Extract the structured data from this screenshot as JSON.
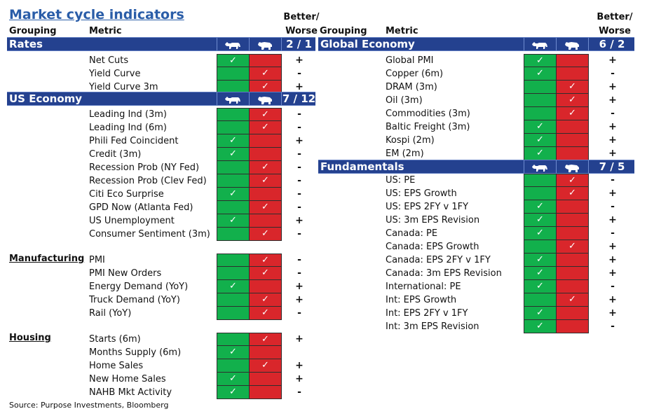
{
  "title": "Market cycle indicators",
  "columns": {
    "grouping": "Grouping",
    "metric": "Metric",
    "better_line1": "Better/",
    "better_line2": "Worse"
  },
  "source": "Source: Purpose Investments, Bloomberg",
  "colors": {
    "header_bg": "#24418f",
    "bull": "#12b04c",
    "bear": "#d9262b",
    "title": "#2a5da8"
  },
  "icons": {
    "bull": "bull-icon",
    "bear": "bear-icon",
    "check": "check-icon"
  },
  "left_sections": [
    {
      "name": "Rates",
      "score": "2 / 1",
      "group_label": "",
      "rows": [
        {
          "metric": "Net Cuts",
          "signal": "bull",
          "sign": "+"
        },
        {
          "metric": "Yield Curve",
          "signal": "bear",
          "sign": "-"
        },
        {
          "metric": "Yield Curve 3m",
          "signal": "bear",
          "sign": "+"
        }
      ]
    },
    {
      "name": "US Economy",
      "score": "7 / 12",
      "group_label": "",
      "rows": [
        {
          "metric": "Leading Ind (3m)",
          "signal": "bear",
          "sign": "-"
        },
        {
          "metric": "Leading Ind (6m)",
          "signal": "bear",
          "sign": "-"
        },
        {
          "metric": "Phili Fed Coincident",
          "signal": "bull",
          "sign": "+"
        },
        {
          "metric": "Credit (3m)",
          "signal": "bull",
          "sign": "-"
        },
        {
          "metric": "Recession Prob (NY Fed)",
          "signal": "bear",
          "sign": "-"
        },
        {
          "metric": "Recession Prob (Clev Fed)",
          "signal": "bear",
          "sign": "-"
        },
        {
          "metric": "Citi Eco Surprise",
          "signal": "bull",
          "sign": "-"
        },
        {
          "metric": "GPD Now (Atlanta Fed)",
          "signal": "bear",
          "sign": "-"
        },
        {
          "metric": "US Unemployment",
          "signal": "bull",
          "sign": "+"
        },
        {
          "metric": "Consumer Sentiment (3m)",
          "signal": "bear",
          "sign": "-"
        }
      ]
    },
    {
      "name": "",
      "score": "",
      "group_label": "Manufacturing",
      "rows": [
        {
          "metric": "PMI",
          "signal": "bear",
          "sign": "-"
        },
        {
          "metric": "PMI New Orders",
          "signal": "bear",
          "sign": "-"
        },
        {
          "metric": "Energy Demand (YoY)",
          "signal": "bull",
          "sign": "+"
        },
        {
          "metric": "Truck Demand (YoY)",
          "signal": "bear",
          "sign": "+"
        },
        {
          "metric": "Rail (YoY)",
          "signal": "bear",
          "sign": "-"
        }
      ]
    },
    {
      "name": "",
      "score": "",
      "group_label": "Housing",
      "rows": [
        {
          "metric": "Starts (6m)",
          "signal": "bear",
          "sign": "+"
        },
        {
          "metric": "Months Supply (6m)",
          "signal": "bull",
          "sign": ""
        },
        {
          "metric": "Home Sales",
          "signal": "bear",
          "sign": "+"
        },
        {
          "metric": "New Home Sales",
          "signal": "bull",
          "sign": "+"
        },
        {
          "metric": "NAHB Mkt Activity",
          "signal": "bull",
          "sign": "-"
        }
      ]
    }
  ],
  "right_sections": [
    {
      "name": "Global Economy",
      "score": "6 / 2",
      "rows": [
        {
          "metric": "Global PMI",
          "signal": "bull",
          "sign": "+"
        },
        {
          "metric": "Copper (6m)",
          "signal": "bull",
          "sign": "-"
        },
        {
          "metric": "DRAM (3m)",
          "signal": "bear",
          "sign": "+"
        },
        {
          "metric": "Oil (3m)",
          "signal": "bear",
          "sign": "+"
        },
        {
          "metric": "Commodities (3m)",
          "signal": "bear",
          "sign": "-"
        },
        {
          "metric": "Baltic Freight (3m)",
          "signal": "bull",
          "sign": "+"
        },
        {
          "metric": "Kospi (2m)",
          "signal": "bull",
          "sign": "+"
        },
        {
          "metric": "EM (2m)",
          "signal": "bull",
          "sign": "+"
        }
      ]
    },
    {
      "name": "Fundamentals",
      "score": "7 / 5",
      "rows": [
        {
          "metric": "US: PE",
          "signal": "bear",
          "sign": "-"
        },
        {
          "metric": "US: EPS Growth",
          "signal": "bear",
          "sign": "+"
        },
        {
          "metric": "US: EPS 2FY v 1FY",
          "signal": "bull",
          "sign": "-"
        },
        {
          "metric": "US: 3m EPS Revision",
          "signal": "bull",
          "sign": "+"
        },
        {
          "metric": "Canada: PE",
          "signal": "bull",
          "sign": "-"
        },
        {
          "metric": "Canada: EPS Growth",
          "signal": "bear",
          "sign": "+"
        },
        {
          "metric": "Canada: EPS 2FY v 1FY",
          "signal": "bull",
          "sign": "+"
        },
        {
          "metric": "Canada: 3m EPS Revision",
          "signal": "bull",
          "sign": "+"
        },
        {
          "metric": "International: PE",
          "signal": "bull",
          "sign": "-"
        },
        {
          "metric": "Int: EPS Growth",
          "signal": "bear",
          "sign": "+"
        },
        {
          "metric": "Int: EPS 2FY v 1FY",
          "signal": "bull",
          "sign": "+"
        },
        {
          "metric": "Int: 3m EPS Revision",
          "signal": "bull",
          "sign": "-"
        }
      ]
    }
  ]
}
